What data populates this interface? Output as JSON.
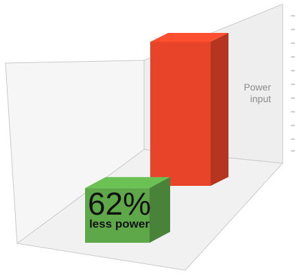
{
  "chart_data": {
    "type": "bar",
    "title": "",
    "xlabel": "",
    "ylabel_lines": [
      "Power",
      "input"
    ],
    "categories": [
      "",
      ""
    ],
    "values": [
      38,
      100
    ],
    "colors": {
      "reduced": "#5ea84a",
      "baseline": "#e8442a"
    },
    "annotation": {
      "percent": "62%",
      "caption": "less power"
    },
    "ylim": [
      0,
      100
    ],
    "grid": false,
    "legend": "none"
  }
}
